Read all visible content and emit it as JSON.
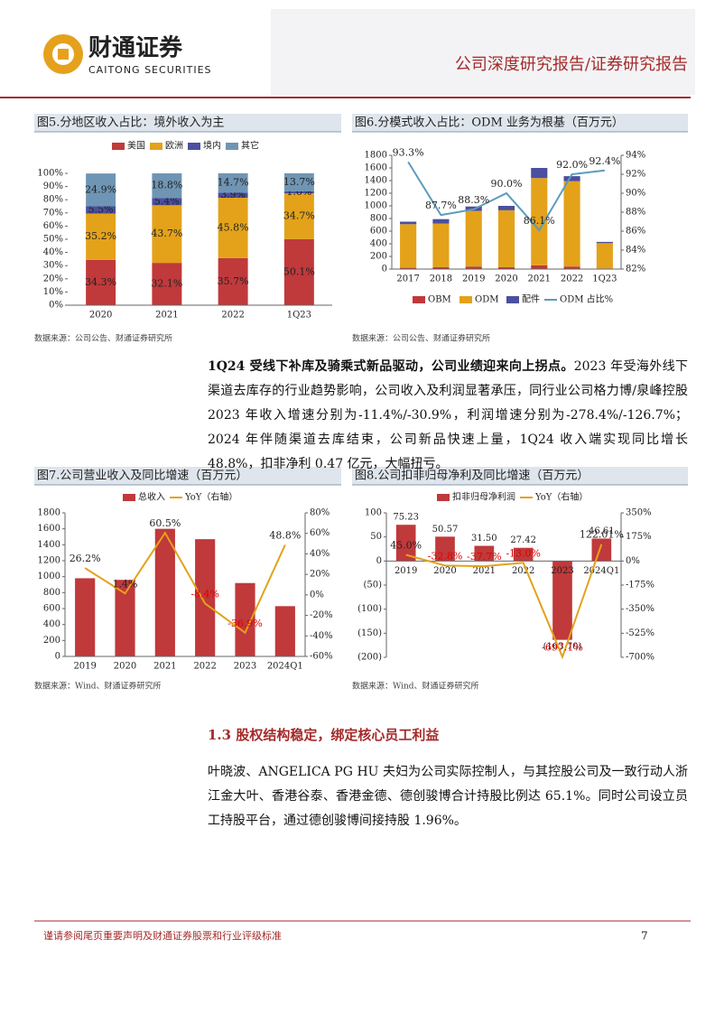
{
  "header": {
    "logo_cn": "财通证券",
    "logo_en": "CAITONG SECURITIES",
    "report_type": "公司深度研究报告/证券研究报告"
  },
  "chart_data": [
    {
      "type": "stacked-bar",
      "title": "图5.分地区收入占比：境外收入为主",
      "source": "数据来源：公司公告、财通证券研究所",
      "legend": "top",
      "categories": [
        "2020",
        "2021",
        "2022",
        "1Q23"
      ],
      "series": [
        {
          "name": "美国",
          "color": "#c0393b",
          "values": [
            34.3,
            32.1,
            35.7,
            50.1
          ],
          "value_labels": [
            "34.3%",
            "32.1%",
            "35.7%",
            "50.1%"
          ]
        },
        {
          "name": "欧洲",
          "color": "#e3a21a",
          "values": [
            35.2,
            43.7,
            45.8,
            34.7
          ],
          "value_labels": [
            "35.2%",
            "43.7%",
            "45.8%",
            "34.7%"
          ]
        },
        {
          "name": "境内",
          "color": "#4b4f9e",
          "values": [
            5.5,
            5.4,
            3.9,
            1.6
          ],
          "value_labels": [
            "5.5%",
            "5.4%",
            "3.9%",
            "1.6%"
          ]
        },
        {
          "name": "其它",
          "color": "#6f95b4",
          "values": [
            24.9,
            18.8,
            14.7,
            13.7
          ],
          "value_labels": [
            "24.9%",
            "18.8%",
            "14.7%",
            "13.7%"
          ]
        }
      ],
      "ylim": [
        0,
        100
      ],
      "yticks": [
        {
          "value": 0,
          "label": "0%"
        },
        {
          "value": 10,
          "label": "10%"
        },
        {
          "value": 20,
          "label": "20%"
        },
        {
          "value": 30,
          "label": "30%"
        },
        {
          "value": 40,
          "label": "40%"
        },
        {
          "value": 50,
          "label": "50%"
        },
        {
          "value": 60,
          "label": "60%"
        },
        {
          "value": 70,
          "label": "70%"
        },
        {
          "value": 80,
          "label": "80%"
        },
        {
          "value": 90,
          "label": "90%"
        },
        {
          "value": 100,
          "label": "100%"
        }
      ]
    },
    {
      "type": "combo",
      "title": "图6.分模式收入占比：ODM 业务为根基（百万元）",
      "source": "数据来源：公司公告、财通证券研究所",
      "legend": "bottom",
      "categories": [
        "2017",
        "2018",
        "2019",
        "2020",
        "2021",
        "2022",
        "1Q23"
      ],
      "series": [
        {
          "name": "OBM",
          "type": "bar",
          "color": "#c0393b",
          "values": [
            20,
            30,
            40,
            30,
            60,
            40,
            10
          ]
        },
        {
          "name": "ODM",
          "type": "bar",
          "color": "#e3a21a",
          "values": [
            690,
            690,
            880,
            900,
            1380,
            1350,
            400
          ]
        },
        {
          "name": "配件",
          "type": "bar",
          "color": "#4b4f9e",
          "values": [
            40,
            70,
            70,
            70,
            160,
            80,
            20
          ]
        },
        {
          "name": "ODM 占比%",
          "type": "line",
          "axis": "y2",
          "color": "#5b9bbd",
          "values": [
            93.3,
            87.7,
            88.3,
            90.0,
            86.1,
            92.0,
            92.4
          ],
          "value_labels": [
            "93.3%",
            "87.7%",
            "88.3%",
            "90.0%",
            "86.1%",
            "92.0%",
            "92.4%"
          ]
        }
      ],
      "ylim": [
        0,
        1800
      ],
      "yticks": [
        0,
        200,
        400,
        600,
        800,
        1000,
        1200,
        1400,
        1600,
        1800
      ],
      "y2lim": [
        82,
        94
      ],
      "y2ticks": [
        {
          "value": 82,
          "label": "82%"
        },
        {
          "value": 84,
          "label": "84%"
        },
        {
          "value": 86,
          "label": "86%"
        },
        {
          "value": 88,
          "label": "88%"
        },
        {
          "value": 90,
          "label": "90%"
        },
        {
          "value": 92,
          "label": "92%"
        },
        {
          "value": 94,
          "label": "94%"
        }
      ]
    },
    {
      "type": "combo",
      "title": "图7.公司营业收入及同比增速（百万元）",
      "source": "数据来源：Wind、财通证券研究所",
      "legend": "top",
      "categories": [
        "2019",
        "2020",
        "2021",
        "2022",
        "2023",
        "2024Q1"
      ],
      "series": [
        {
          "name": "总收入",
          "type": "bar",
          "color": "#c0393b",
          "values": [
            980,
            960,
            1600,
            1470,
            920,
            630
          ]
        },
        {
          "name": "YoY（右轴）",
          "type": "line",
          "axis": "y2",
          "color": "#e3a21a",
          "values": [
            26.2,
            1.4,
            60.5,
            -8.4,
            -36.9,
            48.8
          ],
          "value_labels": [
            "26.2%",
            "1.4%",
            "60.5%",
            "-8.4%",
            "-36.9%",
            "48.8%"
          ]
        }
      ],
      "ylim": [
        0,
        1800
      ],
      "yticks": [
        0,
        200,
        400,
        600,
        800,
        1000,
        1200,
        1400,
        1600,
        1800
      ],
      "y2lim": [
        -60,
        80
      ],
      "y2ticks": [
        {
          "value": -60,
          "label": "-60%"
        },
        {
          "value": -40,
          "label": "-40%"
        },
        {
          "value": -20,
          "label": "-20%"
        },
        {
          "value": 0,
          "label": "0%"
        },
        {
          "value": 20,
          "label": "20%"
        },
        {
          "value": 40,
          "label": "40%"
        },
        {
          "value": 60,
          "label": "60%"
        },
        {
          "value": 80,
          "label": "80%"
        }
      ]
    },
    {
      "type": "combo",
      "title": "图8.公司扣非归母净利及同比增速（百万元）",
      "source": "数据来源：Wind、财通证券研究所",
      "legend": "top",
      "categories": [
        "2019",
        "2020",
        "2021",
        "2022",
        "2023",
        "2024Q1"
      ],
      "series": [
        {
          "name": "扣非归母净利润",
          "type": "bar",
          "color": "#c0393b",
          "values": [
            75.23,
            50.57,
            31.5,
            27.42,
            -163.7,
            46.61
          ],
          "value_labels": [
            "75.23",
            "50.57",
            "31.50",
            "27.42",
            "(163.70)",
            "46.61"
          ]
        },
        {
          "name": "YoY（右轴）",
          "type": "line",
          "axis": "y2",
          "color": "#e3a21a",
          "values": [
            45.0,
            -32.8,
            -37.7,
            -13.0,
            -697.1,
            122.01
          ],
          "value_labels": [
            "45.0%",
            "-32.8%",
            "-37.7%",
            "-13.0%",
            "-697.1%",
            "122.01%"
          ]
        }
      ],
      "ylim": [
        -200,
        100
      ],
      "yticks": [
        {
          "value": -200,
          "label": "(200)"
        },
        {
          "value": -150,
          "label": "(150)"
        },
        {
          "value": -100,
          "label": "(100)"
        },
        {
          "value": -50,
          "label": "(50)"
        },
        0,
        50,
        100
      ],
      "y2lim": [
        -700,
        350
      ],
      "y2ticks": [
        {
          "value": -700,
          "label": "-700%"
        },
        {
          "value": -525,
          "label": "-525%"
        },
        {
          "value": -350,
          "label": "-350%"
        },
        {
          "value": -175,
          "label": "-175%"
        },
        {
          "value": 0,
          "label": "0%"
        },
        {
          "value": 175,
          "label": "175%"
        },
        {
          "value": 350,
          "label": "350%"
        }
      ]
    }
  ],
  "paragraph1": {
    "lead": "1Q24 受线下补库及骑乘式新品驱动，公司业绩迎来向上拐点。",
    "text": "2023 年受海外线下渠道去库存的行业趋势影响，公司收入及利润显著承压，同行业公司格力博/泉峰控股 2023 年收入增速分别为-11.4%/-30.9%，利润增速分别为-278.4%/-126.7%；2024 年伴随渠道去库结束，公司新品快速上量，1Q24 收入端实现同比增长 48.8%，扣非净利 0.47 亿元，大幅扭亏。"
  },
  "section": {
    "title": "1.3 股权结构稳定，绑定核心员工利益"
  },
  "paragraph2": "叶晓波、ANGELICA PG HU 夫妇为公司实际控制人，与其控股公司及一致行动人浙江金大叶、香港谷泰、香港金德、德创骏博合计持股比例达 65.1%。同时公司设立员工持股平台，通过德创骏博间接持股 1.96%。",
  "footer": {
    "disclaimer": "谨请参阅尾页重要声明及财通证券股票和行业评级标准",
    "page": "7"
  }
}
